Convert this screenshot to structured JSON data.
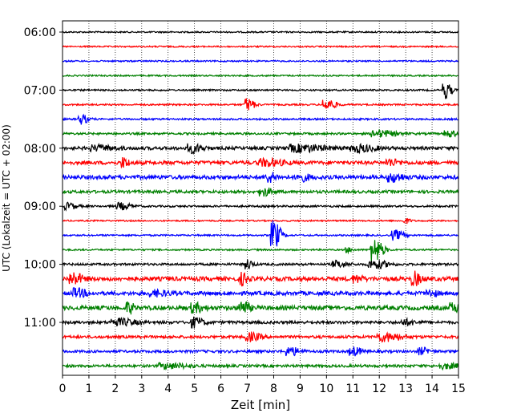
{
  "chart_data": {
    "type": "line",
    "title": "",
    "xlabel": "Zeit  [min]",
    "ylabel": "UTC (Lokalzeit = UTC + 02:00)",
    "xlim": [
      0,
      15
    ],
    "x_ticks": [
      0,
      1,
      2,
      3,
      4,
      5,
      6,
      7,
      8,
      9,
      10,
      11,
      12,
      13,
      14,
      15
    ],
    "x_tick_labels": [
      "0",
      "1",
      "2",
      "3",
      "4",
      "5",
      "6",
      "7",
      "8",
      "9",
      "10",
      "11",
      "12",
      "13",
      "14",
      "15"
    ],
    "y_tick_labels": [
      "06:00",
      "07:00",
      "08:00",
      "09:00",
      "10:00",
      "11:00"
    ],
    "vertical_grid": true,
    "trace_colors": [
      "#000000",
      "#ff0000",
      "#0000ff",
      "#008000"
    ],
    "traces": [
      {
        "start": "06:00",
        "noise": 0.9,
        "events": []
      },
      {
        "start": "06:15",
        "noise": 0.9,
        "events": []
      },
      {
        "start": "06:30",
        "noise": 0.9,
        "events": []
      },
      {
        "start": "06:45",
        "noise": 0.9,
        "events": []
      },
      {
        "start": "07:00",
        "noise": 1.0,
        "events": [
          {
            "t": 14.5,
            "amp": 10,
            "dur": 0.35
          }
        ]
      },
      {
        "start": "07:15",
        "noise": 1.0,
        "events": [
          {
            "t": 7.0,
            "amp": 8,
            "dur": 0.4
          },
          {
            "t": 10.0,
            "amp": 7,
            "dur": 0.5
          }
        ]
      },
      {
        "start": "07:30",
        "noise": 1.1,
        "events": [
          {
            "t": 0.7,
            "amp": 6,
            "dur": 0.4
          }
        ]
      },
      {
        "start": "07:45",
        "noise": 1.3,
        "events": [
          {
            "t": 12.0,
            "amp": 4,
            "dur": 1.0
          },
          {
            "t": 14.6,
            "amp": 4,
            "dur": 0.5
          }
        ]
      },
      {
        "start": "08:00",
        "noise": 2.0,
        "events": [
          {
            "t": 1.3,
            "amp": 3,
            "dur": 1.0
          },
          {
            "t": 4.9,
            "amp": 5,
            "dur": 0.6
          },
          {
            "t": 9.0,
            "amp": 4,
            "dur": 1.5
          },
          {
            "t": 11.2,
            "amp": 4,
            "dur": 1.0
          }
        ]
      },
      {
        "start": "08:15",
        "noise": 2.2,
        "events": [
          {
            "t": 2.3,
            "amp": 6,
            "dur": 0.3
          },
          {
            "t": 7.7,
            "amp": 4,
            "dur": 1.0
          },
          {
            "t": 12.4,
            "amp": 4,
            "dur": 0.5
          }
        ]
      },
      {
        "start": "08:30",
        "noise": 2.4,
        "events": [
          {
            "t": 7.8,
            "amp": 6,
            "dur": 0.4
          },
          {
            "t": 9.0,
            "amp": 4,
            "dur": 0.6
          },
          {
            "t": 12.5,
            "amp": 5,
            "dur": 0.6
          }
        ]
      },
      {
        "start": "08:45",
        "noise": 1.8,
        "events": [
          {
            "t": 7.6,
            "amp": 5,
            "dur": 0.5
          }
        ]
      },
      {
        "start": "09:00",
        "noise": 1.2,
        "events": [
          {
            "t": 0.2,
            "amp": 4,
            "dur": 0.5
          },
          {
            "t": 2.2,
            "amp": 4,
            "dur": 0.6
          }
        ]
      },
      {
        "start": "09:15",
        "noise": 0.9,
        "events": [
          {
            "t": 13.0,
            "amp": 3,
            "dur": 0.3
          }
        ]
      },
      {
        "start": "09:30",
        "noise": 1.0,
        "events": [
          {
            "t": 8.0,
            "amp": 18,
            "dur": 0.4
          },
          {
            "t": 12.6,
            "amp": 6,
            "dur": 0.5
          }
        ]
      },
      {
        "start": "09:45",
        "noise": 1.0,
        "events": [
          {
            "t": 11.8,
            "amp": 15,
            "dur": 0.5
          },
          {
            "t": 10.8,
            "amp": 3,
            "dur": 0.3
          }
        ]
      },
      {
        "start": "10:00",
        "noise": 1.4,
        "events": [
          {
            "t": 7.0,
            "amp": 6,
            "dur": 0.3
          },
          {
            "t": 10.4,
            "amp": 4,
            "dur": 0.6
          },
          {
            "t": 11.8,
            "amp": 5,
            "dur": 0.8
          }
        ]
      },
      {
        "start": "10:15",
        "noise": 2.6,
        "events": [
          {
            "t": 0.4,
            "amp": 7,
            "dur": 0.5
          },
          {
            "t": 6.8,
            "amp": 7,
            "dur": 0.3
          },
          {
            "t": 13.3,
            "amp": 8,
            "dur": 0.4
          },
          {
            "t": 11.1,
            "amp": 4,
            "dur": 0.4
          }
        ]
      },
      {
        "start": "10:30",
        "noise": 2.4,
        "events": [
          {
            "t": 0.5,
            "amp": 5,
            "dur": 0.6
          },
          {
            "t": 3.5,
            "amp": 3,
            "dur": 0.8
          },
          {
            "t": 13.9,
            "amp": 3,
            "dur": 0.5
          }
        ]
      },
      {
        "start": "10:45",
        "noise": 2.6,
        "events": [
          {
            "t": 2.5,
            "amp": 7,
            "dur": 0.3
          },
          {
            "t": 5.0,
            "amp": 5,
            "dur": 0.5
          },
          {
            "t": 6.8,
            "amp": 8,
            "dur": 0.4
          },
          {
            "t": 14.8,
            "amp": 5,
            "dur": 0.5
          }
        ]
      },
      {
        "start": "11:00",
        "noise": 1.8,
        "events": [
          {
            "t": 2.1,
            "amp": 4,
            "dur": 1.0
          },
          {
            "t": 5.0,
            "amp": 6,
            "dur": 0.5
          },
          {
            "t": 13.0,
            "amp": 3,
            "dur": 0.6
          }
        ]
      },
      {
        "start": "11:15",
        "noise": 1.7,
        "events": [
          {
            "t": 7.1,
            "amp": 5,
            "dur": 0.6
          },
          {
            "t": 12.2,
            "amp": 5,
            "dur": 1.0
          }
        ]
      },
      {
        "start": "11:30",
        "noise": 1.6,
        "events": [
          {
            "t": 8.6,
            "amp": 5,
            "dur": 0.6
          },
          {
            "t": 11.0,
            "amp": 5,
            "dur": 0.5
          },
          {
            "t": 13.6,
            "amp": 4,
            "dur": 0.5
          }
        ]
      },
      {
        "start": "11:45",
        "noise": 1.6,
        "events": [
          {
            "t": 4.0,
            "amp": 3,
            "dur": 1.2
          },
          {
            "t": 14.5,
            "amp": 3,
            "dur": 0.8
          }
        ]
      }
    ]
  }
}
